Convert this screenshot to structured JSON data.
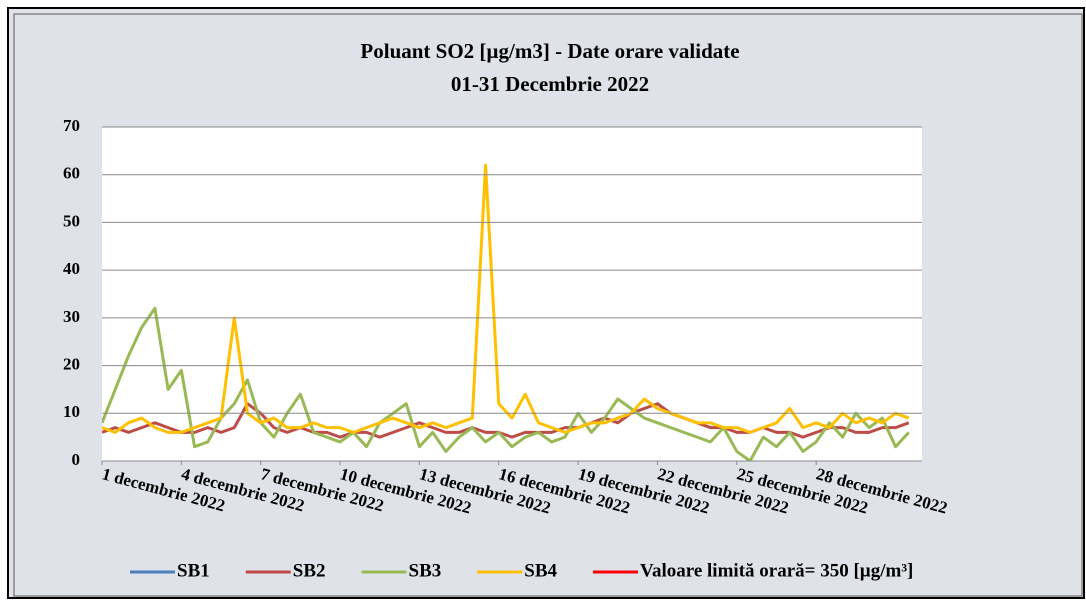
{
  "chart_data": {
    "type": "line",
    "title": "Poluant SO2 [µg/m3] - Date orare validate",
    "subtitle": "01-31 Decembrie 2022",
    "xlim": [
      1,
      32
    ],
    "xticks": [
      {
        "value": 1,
        "label": "1 decembrie 2022"
      },
      {
        "value": 4,
        "label": "4 decembrie 2022"
      },
      {
        "value": 7,
        "label": "7 decembrie 2022"
      },
      {
        "value": 10,
        "label": "10 decembrie 2022"
      },
      {
        "value": 13,
        "label": "13 decembrie 2022"
      },
      {
        "value": 16,
        "label": "16 decembrie 2022"
      },
      {
        "value": 19,
        "label": "19 decembrie 2022"
      },
      {
        "value": 22,
        "label": "22 decembrie 2022"
      },
      {
        "value": 25,
        "label": "25 decembrie 2022"
      },
      {
        "value": 28,
        "label": "28 decembrie 2022"
      }
    ],
    "ylim": [
      0,
      70
    ],
    "yticks": [
      0,
      10,
      20,
      30,
      40,
      50,
      60,
      70
    ],
    "grid": true,
    "legend": "bottom",
    "x": [
      1,
      1.5,
      2,
      2.5,
      3,
      3.5,
      4,
      4.5,
      5,
      5.5,
      6,
      6.5,
      7,
      7.5,
      8,
      8.5,
      9,
      9.5,
      10,
      10.5,
      11,
      11.5,
      12,
      12.5,
      13,
      13.5,
      14,
      14.5,
      15,
      15.5,
      16,
      16.5,
      17,
      17.5,
      18,
      18.5,
      19,
      19.5,
      20,
      20.5,
      21,
      21.5,
      22,
      22.5,
      23,
      23.5,
      24,
      24.5,
      25,
      25.5,
      26,
      26.5,
      27,
      27.5,
      28,
      28.5,
      29,
      29.5,
      30,
      30.5,
      31,
      31.5
    ],
    "series": [
      {
        "name": "SB1",
        "color": "#4a7ebb",
        "values": [
          null,
          null,
          null,
          null,
          null,
          null,
          null,
          null,
          null,
          null,
          null,
          null,
          null,
          null,
          null,
          null,
          null,
          null,
          null,
          null,
          null,
          null,
          null,
          null,
          null,
          null,
          null,
          null,
          null,
          null,
          null,
          null,
          null,
          null,
          null,
          null,
          null,
          null,
          null,
          null,
          null,
          null,
          null,
          null,
          null,
          null,
          null,
          null,
          null,
          null,
          null,
          null,
          null,
          null,
          null,
          null,
          null,
          null,
          null,
          null,
          null,
          null
        ]
      },
      {
        "name": "SB2",
        "color": "#be4b48",
        "values": [
          6,
          7,
          6,
          7,
          8,
          7,
          6,
          6,
          7,
          6,
          7,
          12,
          10,
          7,
          6,
          7,
          6,
          6,
          5,
          6,
          6,
          5,
          6,
          7,
          8,
          7,
          6,
          6,
          7,
          6,
          6,
          5,
          6,
          6,
          6,
          7,
          7,
          8,
          9,
          8,
          10,
          11,
          12,
          10,
          9,
          8,
          7,
          7,
          6,
          6,
          7,
          6,
          6,
          5,
          6,
          7,
          7,
          6,
          6,
          7,
          7,
          8
        ]
      },
      {
        "name": "SB3",
        "color": "#98b954",
        "values": [
          8,
          15,
          22,
          28,
          32,
          15,
          19,
          3,
          4,
          9,
          12,
          17,
          8,
          5,
          10,
          14,
          6,
          5,
          4,
          6,
          3,
          8,
          10,
          12,
          3,
          6,
          2,
          5,
          7,
          4,
          6,
          3,
          5,
          6,
          4,
          5,
          10,
          6,
          9,
          13,
          11,
          9,
          8,
          7,
          6,
          5,
          4,
          7,
          2,
          0,
          5,
          3,
          6,
          2,
          4,
          8,
          5,
          10,
          7,
          9,
          3,
          6
        ]
      },
      {
        "name": "SB4",
        "color": "#ffc000",
        "values": [
          7,
          6,
          8,
          9,
          7,
          6,
          6,
          7,
          8,
          9,
          30,
          10,
          8,
          9,
          7,
          7,
          8,
          7,
          7,
          6,
          7,
          8,
          9,
          8,
          7,
          8,
          7,
          8,
          9,
          62,
          12,
          9,
          14,
          8,
          7,
          6,
          7,
          8,
          8,
          9,
          10,
          13,
          11,
          10,
          9,
          8,
          8,
          7,
          7,
          6,
          7,
          8,
          11,
          7,
          8,
          7,
          10,
          8,
          9,
          8,
          10,
          9
        ]
      }
    ],
    "limit": {
      "name": "Valoare limită orară= 350 [µg/m³]",
      "color": "#ff0000",
      "value": 350
    }
  }
}
